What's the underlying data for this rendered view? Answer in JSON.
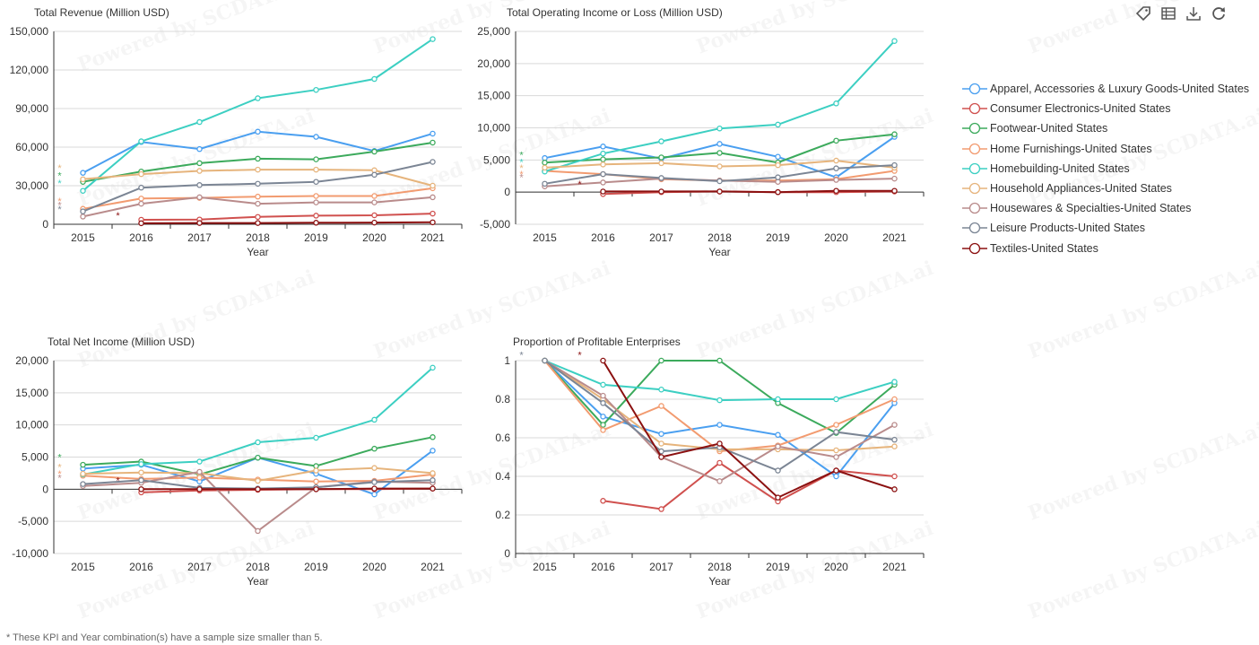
{
  "toolbar": [
    {
      "icon": "tag-icon"
    },
    {
      "icon": "table-view-icon"
    },
    {
      "icon": "download-icon"
    },
    {
      "icon": "refresh-icon"
    }
  ],
  "watermark": "Powered by SCDATA.ai",
  "footnote": "* These KPI and Year combination(s) have a sample size smaller than 5.",
  "legend": [
    {
      "name": "Apparel, Accessories & Luxury Goods-United States",
      "color": "#4a9ff0"
    },
    {
      "name": "Consumer Electronics-United States",
      "color": "#d0504e"
    },
    {
      "name": "Footwear-United States",
      "color": "#3caa5c"
    },
    {
      "name": "Home Furnishings-United States",
      "color": "#f29b70"
    },
    {
      "name": "Homebuilding-United States",
      "color": "#3ccfc2"
    },
    {
      "name": "Household Appliances-United States",
      "color": "#e6b47c"
    },
    {
      "name": "Housewares & Specialties-United States",
      "color": "#b98b8b"
    },
    {
      "name": "Leisure Products-United States",
      "color": "#7b8594"
    },
    {
      "name": "Textiles-United States",
      "color": "#8b1010"
    }
  ],
  "chart_data": [
    {
      "type": "line",
      "title": "Total Revenue (Million USD)",
      "xlabel": "Year",
      "ylabel": "",
      "categories": [
        "2015",
        "2016",
        "2017",
        "2018",
        "2019",
        "2020",
        "2021"
      ],
      "yticks": [
        0,
        30000,
        60000,
        90000,
        120000,
        150000
      ],
      "ytick_labels": [
        "0",
        "30,000",
        "60,000",
        "90,000",
        "120,000",
        "150,000"
      ],
      "ylim": [
        0,
        150000
      ],
      "series": [
        {
          "name": "Apparel, Accessories & Luxury Goods-United States",
          "values": [
            40000,
            64000,
            58500,
            72000,
            68000,
            57000,
            70500
          ]
        },
        {
          "name": "Consumer Electronics-United States",
          "values": [
            null,
            3500,
            3700,
            5700,
            6700,
            7000,
            8300
          ]
        },
        {
          "name": "Footwear-United States",
          "values": [
            33000,
            41000,
            47500,
            51000,
            50500,
            56500,
            63500
          ]
        },
        {
          "name": "Home Furnishings-United States",
          "values": [
            12000,
            20000,
            20500,
            21500,
            22000,
            22000,
            28000
          ]
        },
        {
          "name": "Homebuilding-United States",
          "values": [
            26000,
            64500,
            79500,
            98000,
            104500,
            113000,
            144000
          ]
        },
        {
          "name": "Household Appliances-United States",
          "values": [
            35000,
            39000,
            41500,
            42500,
            42500,
            42000,
            30000
          ]
        },
        {
          "name": "Housewares & Specialties-United States",
          "values": [
            6000,
            16000,
            21000,
            16000,
            17000,
            17000,
            21000
          ]
        },
        {
          "name": "Leisure Products-United States",
          "values": [
            10000,
            28500,
            30500,
            31500,
            33000,
            38500,
            48500
          ]
        },
        {
          "name": "Textiles-United States",
          "values": [
            null,
            800,
            1000,
            1000,
            1200,
            1300,
            1500
          ]
        }
      ],
      "small_sample_markers": [
        {
          "x": "2015",
          "y": 44000,
          "series": "Household Appliances-United States"
        },
        {
          "x": "2015",
          "y": 38000,
          "series": "Footwear-United States"
        },
        {
          "x": "2015",
          "y": 32000,
          "series": "Homebuilding-United States"
        },
        {
          "x": "2015",
          "y": 18000,
          "series": "Home Furnishings-United States"
        },
        {
          "x": "2015",
          "y": 15000,
          "series": "Housewares & Specialties-United States"
        },
        {
          "x": "2015",
          "y": 12000,
          "series": "Leisure Products-United States"
        },
        {
          "x": "2016",
          "y": 7000,
          "series": "Textiles-United States"
        }
      ]
    },
    {
      "type": "line",
      "title": "Total Operating Income or Loss (Million USD)",
      "xlabel": "Year",
      "ylabel": "",
      "categories": [
        "2015",
        "2016",
        "2017",
        "2018",
        "2019",
        "2020",
        "2021"
      ],
      "yticks": [
        -5000,
        0,
        5000,
        10000,
        15000,
        20000,
        25000
      ],
      "ytick_labels": [
        "-5,000",
        "0",
        "5,000",
        "10,000",
        "15,000",
        "20,000",
        "25,000"
      ],
      "ylim": [
        -5000,
        25000
      ],
      "series": [
        {
          "name": "Apparel, Accessories & Luxury Goods-United States",
          "values": [
            5300,
            7100,
            5200,
            7500,
            5500,
            2300,
            8600
          ]
        },
        {
          "name": "Consumer Electronics-United States",
          "values": [
            null,
            -300,
            0,
            100,
            0,
            0,
            100
          ]
        },
        {
          "name": "Footwear-United States",
          "values": [
            4600,
            5100,
            5400,
            6100,
            4600,
            8000,
            9000
          ]
        },
        {
          "name": "Home Furnishings-United States",
          "values": [
            3300,
            2800,
            2000,
            1800,
            1800,
            2000,
            3300
          ]
        },
        {
          "name": "Homebuilding-United States",
          "values": [
            3200,
            6000,
            7900,
            9900,
            10500,
            13800,
            23500
          ]
        },
        {
          "name": "Household Appliances-United States",
          "values": [
            3800,
            4300,
            4500,
            4000,
            4200,
            4900,
            3800
          ]
        },
        {
          "name": "Housewares & Specialties-United States",
          "values": [
            900,
            1500,
            2100,
            1800,
            1600,
            1900,
            2100
          ]
        },
        {
          "name": "Leisure Products-United States",
          "values": [
            1300,
            2800,
            2200,
            1700,
            2300,
            3700,
            4200
          ]
        },
        {
          "name": "Textiles-United States",
          "values": [
            null,
            100,
            100,
            100,
            0,
            200,
            200
          ]
        }
      ],
      "small_sample_markers": [
        {
          "x": "2015",
          "y": 5800,
          "series": "Footwear-United States"
        },
        {
          "x": "2015",
          "y": 4700,
          "series": "Homebuilding-United States"
        },
        {
          "x": "2015",
          "y": 3800,
          "series": "Household Appliances-United States"
        },
        {
          "x": "2015",
          "y": 2800,
          "series": "Home Furnishings-United States"
        },
        {
          "x": "2015",
          "y": 2300,
          "series": "Housewares & Specialties-United States"
        },
        {
          "x": "2016",
          "y": 1300,
          "series": "Textiles-United States"
        }
      ]
    },
    {
      "type": "line",
      "title": "Total Net Income (Million USD)",
      "xlabel": "Year",
      "ylabel": "",
      "categories": [
        "2015",
        "2016",
        "2017",
        "2018",
        "2019",
        "2020",
        "2021"
      ],
      "yticks": [
        -10000,
        -5000,
        0,
        5000,
        10000,
        15000,
        20000
      ],
      "ytick_labels": [
        "-10,000",
        "-5,000",
        "0",
        "5,000",
        "10,000",
        "15,000",
        "20,000"
      ],
      "ylim": [
        -10000,
        20000
      ],
      "series": [
        {
          "name": "Apparel, Accessories & Luxury Goods-United States",
          "values": [
            3200,
            3800,
            1200,
            4900,
            2400,
            -800,
            6000
          ]
        },
        {
          "name": "Consumer Electronics-United States",
          "values": [
            null,
            -500,
            -200,
            -100,
            0,
            0,
            100
          ]
        },
        {
          "name": "Footwear-United States",
          "values": [
            3800,
            4300,
            2300,
            4900,
            3600,
            6300,
            8100
          ]
        },
        {
          "name": "Home Furnishings-United States",
          "values": [
            2100,
            1600,
            1800,
            1500,
            1200,
            1300,
            2300
          ]
        },
        {
          "name": "Homebuilding-United States",
          "values": [
            2300,
            3900,
            4300,
            7300,
            8000,
            10800,
            18900
          ]
        },
        {
          "name": "Household Appliances-United States",
          "values": [
            2400,
            2600,
            2500,
            1300,
            2900,
            3300,
            2500
          ]
        },
        {
          "name": "Housewares & Specialties-United States",
          "values": [
            500,
            1000,
            2700,
            -6500,
            300,
            1200,
            1000
          ]
        },
        {
          "name": "Leisure Products-United States",
          "values": [
            800,
            1400,
            200,
            100,
            300,
            1100,
            1400
          ]
        },
        {
          "name": "Textiles-United States",
          "values": [
            null,
            0,
            0,
            0,
            0,
            100,
            100
          ]
        }
      ],
      "small_sample_markers": [
        {
          "x": "2015",
          "y": 5000,
          "series": "Footwear-United States"
        },
        {
          "x": "2015",
          "y": 3500,
          "series": "Household Appliances-United States"
        },
        {
          "x": "2015",
          "y": 2400,
          "series": "Home Furnishings-United States"
        },
        {
          "x": "2015",
          "y": 1800,
          "series": "Housewares & Specialties-United States"
        },
        {
          "x": "2016",
          "y": 1400,
          "series": "Textiles-United States"
        }
      ]
    },
    {
      "type": "line",
      "title": "Proportion of Profitable Enterprises",
      "xlabel": "Year",
      "ylabel": "",
      "categories": [
        "2015",
        "2016",
        "2017",
        "2018",
        "2019",
        "2020",
        "2021"
      ],
      "yticks": [
        0,
        0.2,
        0.4,
        0.6,
        0.8,
        1
      ],
      "ytick_labels": [
        "0",
        "0.2",
        "0.4",
        "0.6",
        "0.8",
        "1"
      ],
      "ylim": [
        0,
        1
      ],
      "series": [
        {
          "name": "Apparel, Accessories & Luxury Goods-United States",
          "values": [
            1,
            0.71,
            0.62,
            0.667,
            0.615,
            0.4,
            0.78
          ]
        },
        {
          "name": "Consumer Electronics-United States",
          "values": [
            null,
            0.273,
            0.23,
            0.47,
            0.27,
            0.43,
            0.4
          ]
        },
        {
          "name": "Footwear-United States",
          "values": [
            1,
            0.667,
            1,
            1,
            0.78,
            0.625,
            0.875
          ]
        },
        {
          "name": "Home Furnishings-United States",
          "values": [
            1,
            0.64,
            0.765,
            0.53,
            0.56,
            0.667,
            0.8
          ]
        },
        {
          "name": "Homebuilding-United States",
          "values": [
            1,
            0.875,
            0.85,
            0.795,
            0.8,
            0.8,
            0.89
          ]
        },
        {
          "name": "Household Appliances-United States",
          "values": [
            1,
            0.8,
            0.57,
            0.54,
            0.54,
            0.535,
            0.555
          ]
        },
        {
          "name": "Housewares & Specialties-United States",
          "values": [
            1,
            0.818,
            0.5,
            0.375,
            0.555,
            0.5,
            0.667
          ]
        },
        {
          "name": "Leisure Products-United States",
          "values": [
            1,
            0.78,
            0.53,
            0.55,
            0.43,
            0.63,
            0.59
          ]
        },
        {
          "name": "Textiles-United States",
          "values": [
            null,
            1,
            0.5,
            0.57,
            0.29,
            0.43,
            0.333
          ]
        }
      ],
      "small_sample_markers": [
        {
          "x": "2015",
          "y": 1.03,
          "series": "Leisure Products-United States"
        },
        {
          "x": "2016",
          "y": 1.03,
          "series": "Textiles-United States"
        }
      ]
    }
  ]
}
